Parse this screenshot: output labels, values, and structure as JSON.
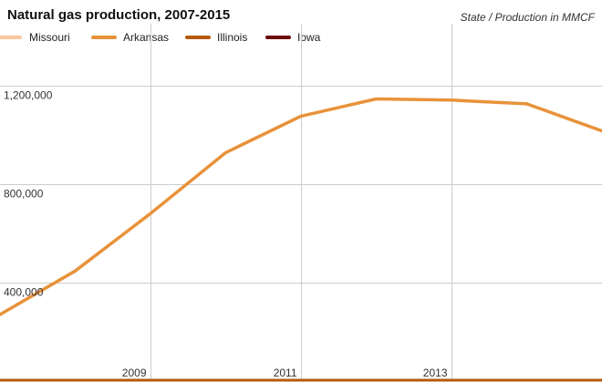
{
  "chart_data": {
    "type": "line",
    "title": "Natural gas production, 2007-2015",
    "subtitle": "State / Production in MMCF",
    "xlabel": "",
    "ylabel": "",
    "x": [
      2007,
      2008,
      2009,
      2010,
      2011,
      2012,
      2013,
      2014,
      2015
    ],
    "xlim": [
      2007,
      2015
    ],
    "ylim": [
      0,
      1450000
    ],
    "x_ticks": [
      2009,
      2011,
      2013
    ],
    "y_ticks": [
      400000,
      800000,
      1200000
    ],
    "y_tick_labels": [
      "400,000",
      "800,000",
      "1,200,000"
    ],
    "x_tick_labels": [
      "2009",
      "2011",
      "2013"
    ],
    "grid": true,
    "legend_position": "top-left",
    "series": [
      {
        "name": "Missouri",
        "color": "#f9c89e",
        "values": [
          0,
          0,
          0,
          0,
          0,
          0,
          0,
          0,
          0
        ]
      },
      {
        "name": "Arkansas",
        "color": "#e8923a",
        "values": [
          270000,
          447000,
          680000,
          927000,
          1075000,
          1145000,
          1140000,
          1125000,
          1015000
        ]
      },
      {
        "name": "Illinois",
        "color": "#b65a0a",
        "values": [
          1500,
          1500,
          1500,
          1500,
          1500,
          2000,
          2500,
          2500,
          2500
        ]
      },
      {
        "name": "Iowa",
        "color": "#6e0a0a",
        "values": [
          0,
          0,
          0,
          0,
          0,
          0,
          0,
          0,
          0
        ]
      }
    ]
  }
}
